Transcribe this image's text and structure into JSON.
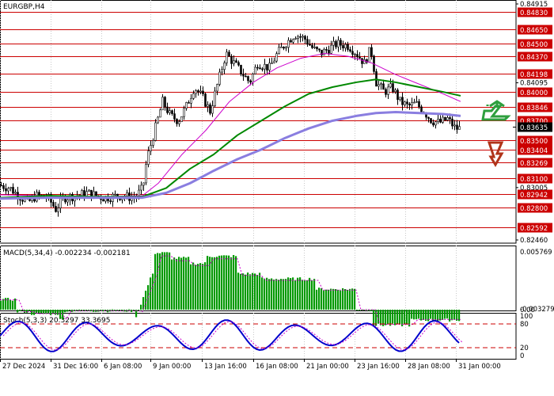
{
  "symbol_label": "EURGBP,H4",
  "macd_label": "MACD(5,34,4) -0.002234 -0.002181",
  "stoch_label": "Stoch(5,3,3) 20.3297 33.3695",
  "price_ticks": [
    "0.84915",
    "0.84095",
    "0.83005",
    "0.82460"
  ],
  "price_levels": [
    {
      "v": 0.8483,
      "label": "0.84830"
    },
    {
      "v": 0.8465,
      "label": "0.84650"
    },
    {
      "v": 0.845,
      "label": "0.84500"
    },
    {
      "v": 0.8437,
      "label": "0.84370"
    },
    {
      "v": 0.8419,
      "label": "0.84198"
    },
    {
      "v": 0.84,
      "label": "0.84000"
    },
    {
      "v": 0.8384,
      "label": "0.83846"
    },
    {
      "v": 0.837,
      "label": "0.83700"
    },
    {
      "v": 0.835,
      "label": "0.83500"
    },
    {
      "v": 0.834,
      "label": "0.83404"
    },
    {
      "v": 0.8327,
      "label": "0.83269"
    },
    {
      "v": 0.831,
      "label": "0.83100"
    },
    {
      "v": 0.8294,
      "label": "0.82942"
    },
    {
      "v": 0.828,
      "label": "0.82800"
    },
    {
      "v": 0.8259,
      "label": "0.82592"
    }
  ],
  "current_price": "0.83635",
  "macd_ticks": [
    "0.005769",
    "0.00",
    "-0.003279"
  ],
  "stoch_ticks": [
    "100",
    "80",
    "20",
    "0"
  ],
  "time_labels": [
    "27 Dec 2024",
    "31 Dec 16:00",
    "6 Jan 08:00",
    "9 Jan 00:00",
    "13 Jan 16:00",
    "16 Jan 08:00",
    "21 Jan 00:00",
    "23 Jan 16:00",
    "28 Jan 08:00",
    "31 Jan 00:00"
  ],
  "colors": {
    "level_line": "#cc0000",
    "level_label_bg": "#cc0000",
    "ma_fast": "#cc00cc",
    "ma_mid": "#008800",
    "ma_slow": "#8a7ee0",
    "macd_bar": "#009900",
    "signal": "#cc00cc",
    "stoch_main": "#0000cc",
    "stoch_signal": "#cc00cc",
    "arrow_up": "#2e9f3e",
    "arrow_down": "#b0341a"
  },
  "icons": {
    "arrow_up": "up-arrow-icon",
    "arrow_down": "down-arrow-icon"
  }
}
